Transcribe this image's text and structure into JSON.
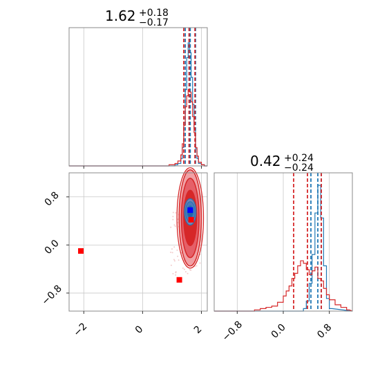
{
  "chart_data": [
    {
      "panel": "top-left",
      "type": "histogram",
      "title": {
        "main": "1.62",
        "sup": "+0.18",
        "sub": "−0.17"
      },
      "xlim": [
        -2.5,
        2.2
      ],
      "grid": true,
      "tick_values": [
        -2,
        0,
        2
      ],
      "series": [
        {
          "color": "#1f77b4",
          "quantile_lines": [
            1.45,
            1.62,
            1.8
          ],
          "bins_x": [
            0.8,
            0.9,
            1.0,
            1.1,
            1.2,
            1.3,
            1.35,
            1.4,
            1.45,
            1.5,
            1.55,
            1.6,
            1.65,
            1.7,
            1.75,
            1.8,
            1.85,
            1.9,
            2.0,
            2.1
          ],
          "bins_y": [
            0,
            0,
            0,
            0.01,
            0.02,
            0.06,
            0.15,
            0.35,
            0.62,
            0.88,
            1.0,
            0.92,
            0.72,
            0.5,
            0.3,
            0.14,
            0.06,
            0.02,
            0.01,
            0
          ]
        },
        {
          "color": "#d62728",
          "quantile_lines": [
            1.4,
            1.58,
            1.78
          ],
          "bins_x": [
            0.8,
            0.9,
            1.0,
            1.1,
            1.2,
            1.3,
            1.35,
            1.4,
            1.45,
            1.5,
            1.55,
            1.6,
            1.65,
            1.7,
            1.75,
            1.8,
            1.85,
            1.9,
            2.0,
            2.1
          ],
          "bins_y": [
            0,
            0.01,
            0.01,
            0.02,
            0.04,
            0.09,
            0.18,
            0.33,
            0.48,
            0.57,
            0.62,
            0.6,
            0.52,
            0.4,
            0.27,
            0.15,
            0.08,
            0.03,
            0.01,
            0
          ]
        }
      ]
    },
    {
      "panel": "bottom-left",
      "type": "contour-scatter",
      "xlim": [
        -2.5,
        2.2
      ],
      "ylim": [
        -1.1,
        1.2
      ],
      "grid": true,
      "x_ticks": [
        "−2",
        "0",
        "2"
      ],
      "x_tick_values": [
        -2,
        0,
        2
      ],
      "y_ticks": [
        "0.8",
        "0.0",
        "−0.8"
      ],
      "y_tick_values": [
        0.8,
        0.0,
        -0.8
      ],
      "contours": [
        {
          "color": "#d62728",
          "center": [
            1.62,
            0.45
          ],
          "radii": [
            [
              0.22,
              0.46
            ],
            [
              0.3,
              0.66
            ],
            [
              0.38,
              0.8
            ]
          ]
        },
        {
          "color": "#1f77b4",
          "center": [
            1.62,
            0.55
          ],
          "radii": [
            [
              0.1,
              0.1
            ],
            [
              0.16,
              0.17
            ],
            [
              0.2,
              0.22
            ]
          ]
        }
      ],
      "markers": [
        {
          "color": "#ff0000",
          "x": -2.1,
          "y": -0.1
        },
        {
          "color": "#ff0000",
          "x": 1.25,
          "y": -0.58
        },
        {
          "color": "#ff0000",
          "x": 1.65,
          "y": 0.42
        },
        {
          "color": "#0000ff",
          "x": 1.62,
          "y": 0.58
        }
      ]
    },
    {
      "panel": "bottom-right",
      "type": "histogram",
      "title": {
        "main": "0.42",
        "sup": "+0.24",
        "sub": "−0.24"
      },
      "xlim": [
        -1.2,
        1.2
      ],
      "grid": true,
      "x_ticks": [
        "−0.8",
        "0.0",
        "0.8"
      ],
      "x_tick_values": [
        -0.8,
        0.0,
        0.8
      ],
      "series": [
        {
          "color": "#1f77b4",
          "quantile_lines": [
            0.48,
            0.6,
            0.66
          ],
          "bins_x": [
            0.3,
            0.35,
            0.4,
            0.45,
            0.5,
            0.55,
            0.6,
            0.65,
            0.7,
            0.75,
            0.8
          ],
          "bins_y": [
            0,
            0.02,
            0.08,
            0.22,
            0.45,
            0.78,
            1.0,
            0.74,
            0.36,
            0.1,
            0.02
          ]
        },
        {
          "color": "#d62728",
          "quantile_lines": [
            0.18,
            0.42,
            0.66
          ],
          "bins_x": [
            -0.6,
            -0.5,
            -0.4,
            -0.3,
            -0.2,
            -0.1,
            0.0,
            0.05,
            0.1,
            0.15,
            0.2,
            0.25,
            0.3,
            0.35,
            0.4,
            0.45,
            0.5,
            0.55,
            0.6,
            0.65,
            0.7,
            0.75,
            0.8,
            0.9,
            1.0,
            1.1
          ],
          "bins_y": [
            0,
            0.01,
            0.02,
            0.03,
            0.04,
            0.07,
            0.12,
            0.16,
            0.2,
            0.26,
            0.3,
            0.36,
            0.4,
            0.38,
            0.33,
            0.29,
            0.32,
            0.35,
            0.26,
            0.24,
            0.18,
            0.13,
            0.09,
            0.05,
            0.03,
            0.01
          ]
        }
      ]
    }
  ]
}
